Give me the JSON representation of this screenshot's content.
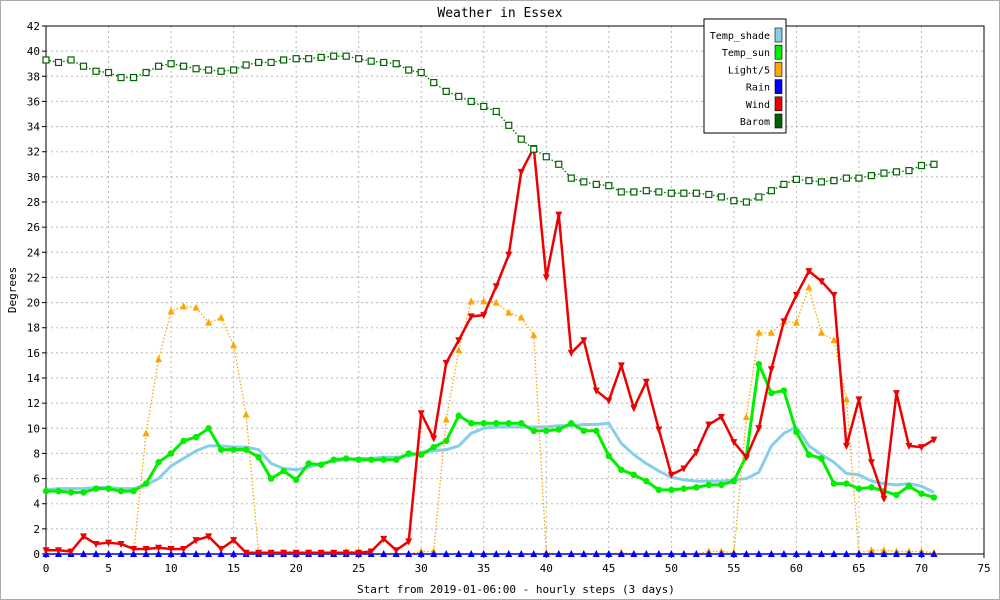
{
  "chart_data": {
    "type": "line",
    "title": "Weather in Essex",
    "xlabel": "Start from 2019-01-06:00 - hourly steps (3 days)",
    "ylabel": "Degrees",
    "xlim": [
      0,
      75
    ],
    "ylim": [
      0,
      42
    ],
    "x_ticks": [
      0,
      5,
      10,
      15,
      20,
      25,
      30,
      35,
      40,
      45,
      50,
      55,
      60,
      65,
      70,
      75
    ],
    "y_ticks": [
      0,
      2,
      4,
      6,
      8,
      10,
      12,
      14,
      16,
      18,
      20,
      22,
      24,
      26,
      28,
      30,
      32,
      34,
      36,
      38,
      40,
      42
    ],
    "grid": true,
    "legend_position": "top-right",
    "series": [
      {
        "name": "Temp_shade",
        "color": "#87ceeb",
        "marker": "none",
        "values": [
          5.1,
          5.2,
          5.2,
          5.2,
          5.3,
          5.3,
          5.2,
          5.2,
          5.5,
          6.0,
          7.0,
          7.6,
          8.2,
          8.6,
          8.6,
          8.5,
          8.5,
          8.3,
          7.2,
          6.8,
          6.7,
          6.9,
          7.2,
          7.4,
          7.5,
          7.6,
          7.6,
          7.7,
          7.7,
          7.8,
          8.1,
          8.2,
          8.3,
          8.6,
          9.6,
          10.0,
          10.1,
          10.1,
          10.1,
          10.1,
          10.1,
          10.2,
          10.2,
          10.3,
          10.3,
          10.4,
          8.8,
          7.9,
          7.2,
          6.6,
          6.1,
          5.9,
          5.8,
          5.8,
          5.8,
          5.9,
          6.0,
          6.5,
          8.6,
          9.6,
          10.1,
          8.6,
          7.9,
          7.3,
          6.4,
          6.3,
          5.8,
          5.6,
          5.5,
          5.6,
          5.4,
          4.9
        ]
      },
      {
        "name": "Temp_sun",
        "color": "#00ee00",
        "marker": "circle",
        "values": [
          5.0,
          5.0,
          4.9,
          4.9,
          5.2,
          5.2,
          5.0,
          5.0,
          5.6,
          7.3,
          8.0,
          9.0,
          9.3,
          10.0,
          8.3,
          8.3,
          8.3,
          7.7,
          6.0,
          6.6,
          5.9,
          7.2,
          7.1,
          7.5,
          7.6,
          7.5,
          7.5,
          7.5,
          7.5,
          8.0,
          7.9,
          8.5,
          9.0,
          11.0,
          10.4,
          10.4,
          10.4,
          10.4,
          10.4,
          9.8,
          9.8,
          9.9,
          10.4,
          9.8,
          9.8,
          7.8,
          6.7,
          6.3,
          5.8,
          5.1,
          5.1,
          5.2,
          5.3,
          5.5,
          5.5,
          5.8,
          7.8,
          15.1,
          12.8,
          13.0,
          9.7,
          7.9,
          7.6,
          5.6,
          5.6,
          5.2,
          5.3,
          5.0,
          4.7,
          5.4,
          4.8,
          4.5
        ]
      },
      {
        "name": "Light/5",
        "color": "#ffa500",
        "marker": "triangle-up",
        "values": [
          0,
          0,
          0,
          0,
          0,
          0,
          0,
          0,
          9.6,
          15.5,
          19.3,
          19.7,
          19.6,
          18.4,
          18.8,
          16.6,
          11.1,
          0.1,
          0,
          0,
          0,
          0,
          0,
          0,
          0.2,
          0.2,
          0,
          0,
          0,
          0,
          0.2,
          0.2,
          10.7,
          16.2,
          20.1,
          20.1,
          20.0,
          19.2,
          18.8,
          17.4,
          0.1,
          0,
          0,
          0,
          0,
          0,
          0.1,
          0,
          0,
          0,
          0,
          0,
          0,
          0.2,
          0.2,
          0.1,
          10.9,
          17.6,
          17.6,
          18.5,
          18.4,
          21.2,
          17.6,
          17.0,
          12.3,
          0.1,
          0.3,
          0.3,
          0.2,
          0.2,
          0.2,
          0.1
        ]
      },
      {
        "name": "Rain",
        "color": "#0000ff",
        "marker": "triangle-up",
        "values": [
          0,
          0,
          0,
          0,
          0,
          0,
          0,
          0,
          0,
          0,
          0,
          0,
          0,
          0,
          0,
          0,
          0,
          0,
          0,
          0,
          0,
          0,
          0,
          0,
          0,
          0,
          0,
          0,
          0,
          0,
          0,
          0,
          0,
          0,
          0,
          0,
          0,
          0,
          0,
          0,
          0,
          0,
          0,
          0,
          0,
          0,
          0,
          0,
          0,
          0,
          0,
          0,
          0,
          0,
          0,
          0,
          0,
          0,
          0,
          0,
          0,
          0,
          0,
          0,
          0,
          0,
          0,
          0,
          0,
          0,
          0,
          0
        ]
      },
      {
        "name": "Wind",
        "color": "#ee0000",
        "marker": "triangle-down",
        "values": [
          0.3,
          0.3,
          0.2,
          1.4,
          0.8,
          0.9,
          0.8,
          0.4,
          0.4,
          0.5,
          0.4,
          0.4,
          1.1,
          1.4,
          0.4,
          1.1,
          0.1,
          0.1,
          0.1,
          0.1,
          0.1,
          0.1,
          0.1,
          0.1,
          0.1,
          0.1,
          0.2,
          1.2,
          0.3,
          1.0,
          11.2,
          9.2,
          15.2,
          17.0,
          18.9,
          19.0,
          21.3,
          23.8,
          30.4,
          32.3,
          22.0,
          27.0,
          16.0,
          17.0,
          13.0,
          12.2,
          15.0,
          11.6,
          13.7,
          9.9,
          6.3,
          6.8,
          8.1,
          10.3,
          10.9,
          8.9,
          7.7,
          10.0,
          14.7,
          18.5,
          20.6,
          22.5,
          21.7,
          20.6,
          8.6,
          12.3,
          7.3,
          4.4,
          12.8,
          8.6,
          8.5,
          9.1
        ]
      },
      {
        "name": "Barom",
        "color": "#006400",
        "marker": "square-open",
        "values": [
          39.3,
          39.1,
          39.3,
          38.8,
          38.4,
          38.3,
          37.9,
          37.9,
          38.3,
          38.8,
          39.0,
          38.8,
          38.6,
          38.5,
          38.4,
          38.5,
          38.9,
          39.1,
          39.1,
          39.3,
          39.4,
          39.4,
          39.5,
          39.6,
          39.6,
          39.4,
          39.2,
          39.1,
          39.0,
          38.5,
          38.3,
          37.5,
          36.8,
          36.4,
          36.0,
          35.6,
          35.2,
          34.1,
          33.0,
          32.2,
          31.6,
          31.0,
          29.9,
          29.6,
          29.4,
          29.3,
          28.8,
          28.8,
          28.9,
          28.8,
          28.7,
          28.7,
          28.7,
          28.6,
          28.4,
          28.1,
          28.0,
          28.4,
          28.9,
          29.4,
          29.8,
          29.7,
          29.6,
          29.7,
          29.9,
          29.9,
          30.1,
          30.3,
          30.4,
          30.5,
          30.9,
          31.0
        ]
      }
    ]
  }
}
